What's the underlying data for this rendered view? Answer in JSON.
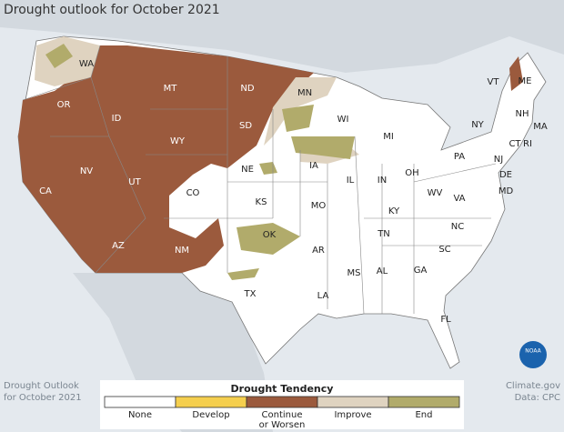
{
  "header": {
    "title": "Drought outlook for October 2021"
  },
  "map": {
    "state_labels": [
      "WA",
      "OR",
      "CA",
      "NV",
      "ID",
      "MT",
      "WY",
      "UT",
      "AZ",
      "CO",
      "NM",
      "ND",
      "SD",
      "NE",
      "KS",
      "OK",
      "TX",
      "MN",
      "IA",
      "MO",
      "AR",
      "LA",
      "WI",
      "IL",
      "MS",
      "AL",
      "MI",
      "IN",
      "KY",
      "TN",
      "OH",
      "GA",
      "PA",
      "WV",
      "VA",
      "NC",
      "SC",
      "FL",
      "NY",
      "VT",
      "ME",
      "NH",
      "MA",
      "CT",
      "RI",
      "NJ",
      "DE",
      "MD"
    ]
  },
  "legend": {
    "title": "Drought Tendency",
    "items": [
      {
        "label": "None",
        "color": "#ffffff"
      },
      {
        "label": "Develop",
        "color": "#f5cf4e"
      },
      {
        "label": "Continue or Worsen",
        "color": "#9b5a3d"
      },
      {
        "label": "Improve",
        "color": "#dfd3c0"
      },
      {
        "label": "End",
        "color": "#b1ab6b"
      }
    ]
  },
  "footer": {
    "left": [
      "Drought Outlook",
      "for October 2021"
    ],
    "right": [
      "Climate.gov",
      "Data: CPC"
    ],
    "logo": "NOAA"
  }
}
